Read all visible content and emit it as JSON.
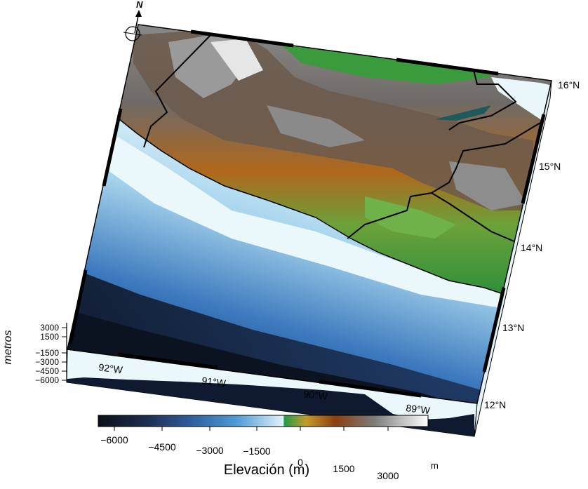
{
  "map": {
    "north_label": "N",
    "lat_labels": [
      "16°N",
      "15°N",
      "14°N",
      "13°N",
      "12°N"
    ],
    "lon_labels": [
      "92°W",
      "91°W",
      "90°W",
      "89°W"
    ],
    "z_axis": {
      "title": "metros",
      "ticks": [
        "3000",
        "1500",
        "−1500",
        "−3000",
        "−4500",
        "−6000"
      ]
    },
    "colorbar": {
      "ticks": [
        "−6000",
        "−4500",
        "−3000",
        "−1500",
        "0",
        "1500",
        "3000"
      ],
      "title": "Elevación (m)",
      "unit": "m",
      "range": [
        -6500,
        4000
      ]
    },
    "colors": {
      "deep_ocean": "#0b1220",
      "mid_ocean": "#2f62a6",
      "shallow_ocean": "#e9f7fb",
      "lowland": "#2f8f3a",
      "midland": "#a0561c",
      "highland": "#7a7a7a",
      "peak": "#f2f2f2"
    }
  }
}
